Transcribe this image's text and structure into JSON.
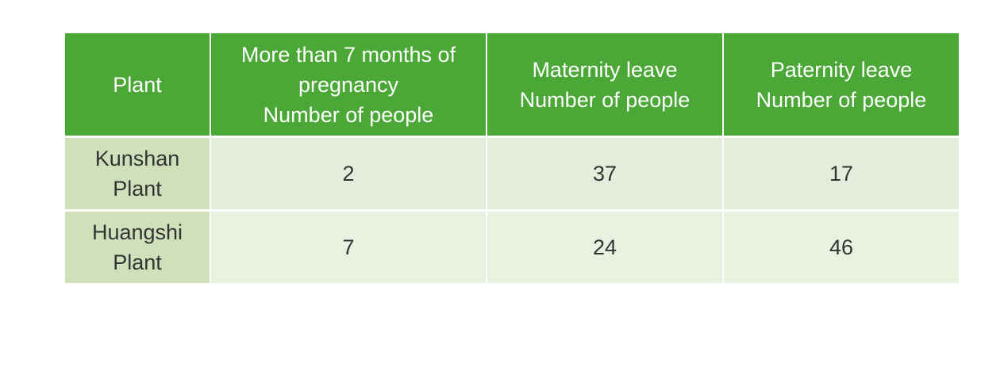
{
  "table": {
    "headers": [
      {
        "lines": [
          "Plant"
        ]
      },
      {
        "lines": [
          "More than 7 months of",
          "pregnancy",
          "Number of people"
        ]
      },
      {
        "lines": [
          "Maternity leave",
          "Number of people"
        ]
      },
      {
        "lines": [
          "Paternity leave",
          "Number of people"
        ]
      }
    ],
    "rows": [
      {
        "plant_lines": [
          "Kunshan",
          "Plant"
        ],
        "pregnancy": "2",
        "maternity": "37",
        "paternity": "17"
      },
      {
        "plant_lines": [
          "Huangshi",
          "Plant"
        ],
        "pregnancy": "7",
        "maternity": "24",
        "paternity": "46"
      }
    ]
  },
  "colors": {
    "header_bg": "#4ba837",
    "label_bg": "#cfe1bb",
    "row1_bg": "#e4eddb",
    "row2_bg": "#e9f1e1"
  }
}
